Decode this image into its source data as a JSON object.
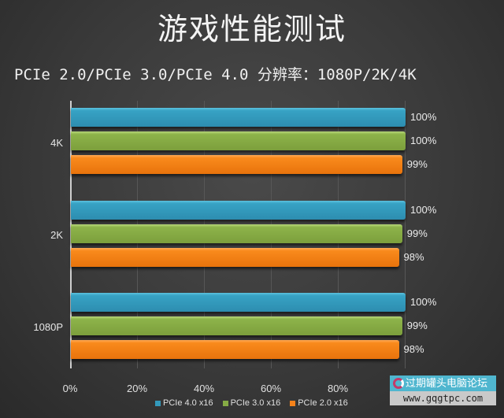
{
  "header": {
    "title": "游戏性能测试",
    "subtitle": "PCIe 2.0/PCIe 3.0/PCIe 4.0  分辨率：1080P/2K/4K"
  },
  "chart_data": {
    "type": "bar",
    "orientation": "horizontal",
    "title": "游戏性能测试",
    "subtitle": "PCIe 2.0/PCIe 3.0/PCIe 4.0  分辨率：1080P/2K/4K",
    "categories": [
      "4K",
      "2K",
      "1080P"
    ],
    "series": [
      {
        "name": "PCIe 4.0 x16",
        "color": "#3399bb",
        "values": [
          100,
          100,
          100
        ],
        "labels": [
          "100%",
          "100%",
          "100%"
        ]
      },
      {
        "name": "PCIe 3.0 x16",
        "color": "#86ab45",
        "values": [
          100,
          99,
          99
        ],
        "labels": [
          "100%",
          "99%",
          "99%"
        ]
      },
      {
        "name": "PCIe 2.0 x16",
        "color": "#f5821a",
        "values": [
          99,
          98,
          98
        ],
        "labels": [
          "99%",
          "98%",
          "98%"
        ]
      }
    ],
    "xlabel": "",
    "ylabel": "",
    "xlim": [
      0,
      100
    ],
    "x_ticks": [
      "0%",
      "20%",
      "40%",
      "60%",
      "80%"
    ],
    "grid": true,
    "legend_position": "bottom"
  },
  "legend": [
    "PCIe 4.0 x16",
    "PCIe 3.0 x16",
    "PCIe 2.0 x16"
  ],
  "watermark": {
    "name": "过期罐头电脑论坛",
    "url": "www.gqgtpc.com"
  }
}
